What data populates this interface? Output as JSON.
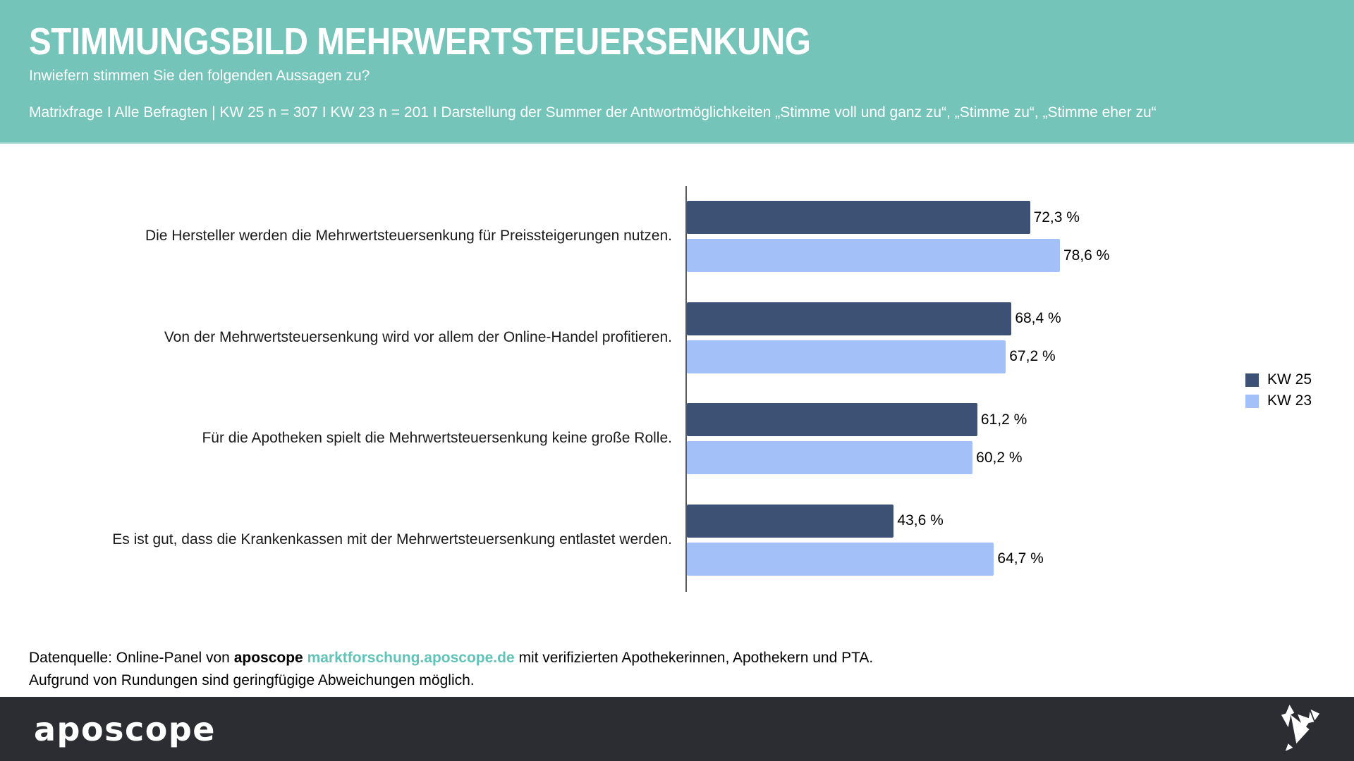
{
  "header": {
    "title": "STIMMUNGSBILD MEHRWERTSTEUERSENKUNG",
    "subtitle": "Inwiefern stimmen Sie den folgenden Aussagen zu?",
    "note": "Matrixfrage I Alle Befragten | KW 25 n = 307 I KW 23 n = 201 I Darstellung der Summer der Antwortmöglichkeiten „Stimme voll und ganz zu“, „Stimme zu“, „Stimme eher zu“"
  },
  "chart_data": {
    "type": "bar",
    "orientation": "horizontal",
    "title": "Stimmungsbild Mehrwertsteuersenkung",
    "categories": [
      "Die Hersteller werden die Mehrwertsteuersenkung für Preissteigerungen nutzen.",
      "Von der Mehrwertsteuersenkung wird vor allem der Online-Handel profitieren.",
      "Für die Apotheken spielt die Mehrwertsteuersenkung keine große Rolle.",
      "Es ist gut, dass die Krankenkassen mit der Mehrwertsteuersenkung entlastet werden."
    ],
    "series": [
      {
        "name": "KW 25",
        "color": "#3d5174",
        "values": [
          72.3,
          68.4,
          61.2,
          43.6
        ],
        "labels": [
          "72,3 %",
          "68,4 %",
          "61,2 %",
          "43,6 %"
        ]
      },
      {
        "name": "KW 23",
        "color": "#a3c1f8",
        "values": [
          78.6,
          67.2,
          60.2,
          64.7
        ],
        "labels": [
          "78,6 %",
          "67,2 %",
          "60,2 %",
          "64,7 %"
        ]
      }
    ],
    "xlabel": "",
    "ylabel": "",
    "xlim": [
      0,
      100
    ],
    "value_suffix": " %",
    "grid": false,
    "legend_position": "right"
  },
  "footer": {
    "source_prefix": "Datenquelle: Online-Panel von",
    "source_brand": "aposcope",
    "source_link": "marktforschung.aposcope.de",
    "source_suffix": "mit verifizierten Apothekerinnen, Apothekern und PTA.",
    "note": "Aufgrund von Rundungen sind geringfügige Abweichungen möglich."
  },
  "bottombar": {
    "logo": "aposcope",
    "logo_icon": "origami-bird"
  },
  "colors": {
    "header_background": "#75c4ba",
    "kw25_bar": "#3d5174",
    "kw23_bar": "#a3c1f8",
    "link_teal": "#62c3b9",
    "bottom_bar": "#2b2d32",
    "axis_line": "#595959"
  }
}
